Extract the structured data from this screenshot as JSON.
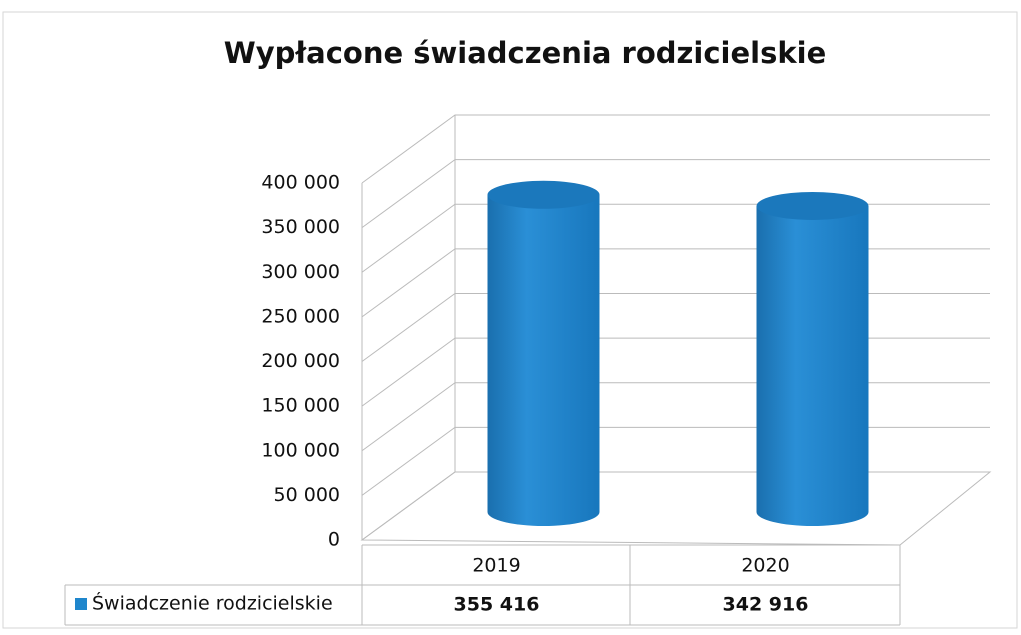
{
  "chart_data": {
    "type": "bar",
    "title": "Wypłacone świadczenia rodzicielskie",
    "categories": [
      "2019",
      "2020"
    ],
    "series": [
      {
        "name": "Świadczenie rodzicielskie",
        "color": "#1f86cc",
        "values": [
          355416,
          342916
        ],
        "value_labels": [
          "355 416",
          "342 916"
        ]
      }
    ],
    "ylim": [
      0,
      400000
    ],
    "yticks": [
      0,
      {
        "value": 50000,
        "label": "50 000"
      },
      {
        "value": 100000,
        "label": "100 000"
      },
      {
        "value": 150000,
        "label": "150 000"
      },
      {
        "value": 200000,
        "label": "200 000"
      },
      {
        "value": 250000,
        "label": "250 000"
      },
      {
        "value": 300000,
        "label": "300 000"
      },
      {
        "value": 350000,
        "label": "350 000"
      },
      {
        "value": 400000,
        "label": "400 000"
      }
    ],
    "grid": true
  }
}
